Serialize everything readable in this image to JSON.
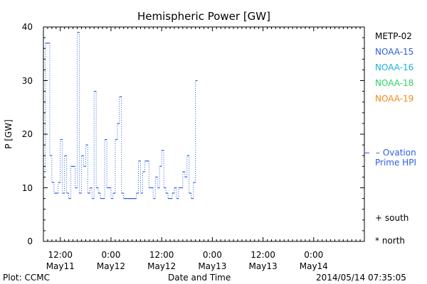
{
  "chart_data": {
    "type": "line",
    "title": "Hemispheric Power [GW]",
    "ylabel": "P [GW]",
    "xlabel": "Date and Time",
    "ylim": [
      0,
      40
    ],
    "yticks": [
      0,
      10,
      20,
      30,
      40
    ],
    "xlim_hours": [
      0,
      76
    ],
    "xticks": [
      {
        "hour": 4,
        "time": "12:00",
        "date": "May11"
      },
      {
        "hour": 16,
        "time": "0:00",
        "date": "May12"
      },
      {
        "hour": 28,
        "time": "12:00",
        "date": "May12"
      },
      {
        "hour": 40,
        "time": "0:00",
        "date": "May13"
      },
      {
        "hour": 52,
        "time": "12:00",
        "date": "May13"
      },
      {
        "hour": 64,
        "time": "0:00",
        "date": "May14"
      }
    ],
    "series": [
      {
        "name": "NOAA-15",
        "color": "#2b5fe0",
        "steps": [
          [
            0,
            13
          ],
          [
            0.5,
            37
          ],
          [
            1.5,
            16
          ],
          [
            2,
            11
          ],
          [
            2.5,
            9
          ],
          [
            3.5,
            11
          ],
          [
            4,
            19
          ],
          [
            4.5,
            9
          ],
          [
            5,
            16
          ],
          [
            5.5,
            9
          ],
          [
            6,
            8
          ],
          [
            6.5,
            14
          ],
          [
            7.5,
            10
          ],
          [
            8,
            39
          ],
          [
            8.5,
            9
          ],
          [
            9,
            16
          ],
          [
            9.5,
            14
          ],
          [
            10,
            18
          ],
          [
            10.5,
            9
          ],
          [
            11,
            10
          ],
          [
            11.5,
            8
          ],
          [
            12,
            28
          ],
          [
            12.5,
            10
          ],
          [
            13,
            9
          ],
          [
            13.5,
            8
          ],
          [
            14.5,
            19
          ],
          [
            15,
            10
          ],
          [
            16,
            8
          ],
          [
            16.5,
            9
          ],
          [
            17,
            19
          ],
          [
            17.5,
            22
          ],
          [
            18,
            27
          ],
          [
            18.5,
            9
          ],
          [
            19,
            8
          ],
          [
            22,
            9
          ],
          [
            22.5,
            15
          ],
          [
            23,
            9
          ],
          [
            23.5,
            13
          ],
          [
            24,
            15
          ],
          [
            25,
            10
          ],
          [
            26,
            8
          ],
          [
            26.5,
            12
          ],
          [
            27,
            10
          ],
          [
            27.5,
            14
          ],
          [
            28,
            17
          ],
          [
            28.5,
            10
          ],
          [
            29,
            9
          ],
          [
            29.5,
            8
          ],
          [
            30.5,
            9
          ],
          [
            31,
            10
          ],
          [
            31.5,
            8
          ],
          [
            32,
            10
          ],
          [
            33,
            13
          ],
          [
            33.5,
            12
          ],
          [
            34,
            16
          ],
          [
            34.5,
            9
          ],
          [
            35,
            8
          ],
          [
            35.5,
            11
          ],
          [
            36,
            30
          ],
          [
            36.5,
            30
          ]
        ]
      }
    ],
    "hpi_level": 16.5,
    "legend": [
      {
        "label": "METP-02",
        "color": "#000000"
      },
      {
        "label": "NOAA-15",
        "color": "#2b5fe0"
      },
      {
        "label": "NOAA-16",
        "color": "#19b3d9"
      },
      {
        "label": "NOAA-18",
        "color": "#2fd06a"
      },
      {
        "label": "NOAA-19",
        "color": "#f08a1a"
      }
    ],
    "annotations": {
      "ovation_line1": "– Ovation",
      "ovation_line2": "Prime HPI",
      "ovation_color": "#2b5fe0",
      "south": "+ south",
      "north": "* north"
    }
  },
  "footer": {
    "left": "Plot: CCMC",
    "right": "2014/05/14 07:35:05"
  }
}
